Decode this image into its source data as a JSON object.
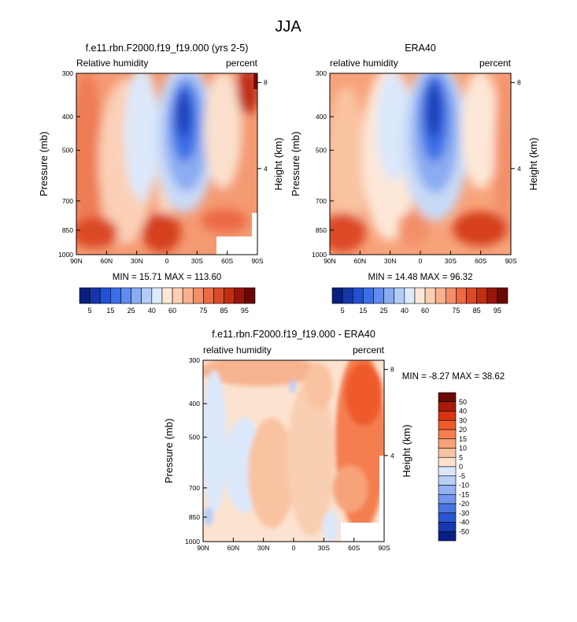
{
  "page": {
    "title": "JJA"
  },
  "chart_data": [
    {
      "type": "heatmap",
      "title": "f.e11.rbn.F2000.f19_f19.000 (yrs 2-5)",
      "subtitle_left": "Relative humidity",
      "subtitle_right": "percent",
      "ylabel": "Pressure (mb)",
      "ylabel_right": "Height (km)",
      "x_ticks": [
        "90N",
        "60N",
        "30N",
        "0",
        "30S",
        "60S",
        "90S"
      ],
      "y_ticks": [
        "300",
        "400",
        "500",
        "700",
        "850",
        "1000"
      ],
      "y_right_ticks": [
        "8",
        "4"
      ],
      "stats": "MIN = 15.71  MAX = 113.60",
      "min": 15.71,
      "max": 113.6,
      "levels": [
        5,
        10,
        15,
        20,
        25,
        30,
        40,
        50,
        60,
        65,
        70,
        75,
        80,
        85,
        90,
        95
      ],
      "labelbar_labels": [
        "5",
        "15",
        "25",
        "40",
        "60",
        "75",
        "85",
        "95"
      ]
    },
    {
      "type": "heatmap",
      "title": "ERA40",
      "subtitle_left": "relative humidity",
      "subtitle_right": "percent",
      "ylabel": "Pressure (mb)",
      "ylabel_right": "Height (km)",
      "x_ticks": [
        "90N",
        "60N",
        "30N",
        "0",
        "30S",
        "60S",
        "90S"
      ],
      "y_ticks": [
        "300",
        "400",
        "500",
        "700",
        "850",
        "1000"
      ],
      "y_right_ticks": [
        "8",
        "4"
      ],
      "stats": "MIN = 14.48  MAX = 96.32",
      "min": 14.48,
      "max": 96.32,
      "levels": [
        5,
        10,
        15,
        20,
        25,
        30,
        40,
        50,
        60,
        65,
        70,
        75,
        80,
        85,
        90,
        95
      ],
      "labelbar_labels": [
        "5",
        "15",
        "25",
        "40",
        "60",
        "75",
        "85",
        "95"
      ]
    },
    {
      "type": "heatmap",
      "title": "f.e11.rbn.F2000.f19_f19.000 - ERA40",
      "subtitle_left": "relative humidity",
      "subtitle_right": "percent",
      "ylabel": "Pressure (mb)",
      "ylabel_right": "Height (km)",
      "x_ticks": [
        "90N",
        "60N",
        "30N",
        "0",
        "30S",
        "60S",
        "90S"
      ],
      "y_ticks": [
        "300",
        "400",
        "500",
        "700",
        "850",
        "1000"
      ],
      "y_right_ticks": [
        "8",
        "4"
      ],
      "stats": "MIN = -8.27  MAX = 38.62",
      "min": -8.27,
      "max": 38.62,
      "levels": [
        50,
        40,
        30,
        20,
        15,
        10,
        5,
        0,
        -5,
        -10,
        -15,
        -20,
        -30,
        -40,
        -50
      ],
      "labelbar_labels": [
        "50",
        "40",
        "30",
        "20",
        "15",
        "10",
        "5",
        "0",
        "-5",
        "-10",
        "-15",
        "-20",
        "-30",
        "-40",
        "-50"
      ]
    }
  ],
  "colors": {
    "scale": [
      "#0a1f7d",
      "#1536a8",
      "#2150d0",
      "#3b6ee6",
      "#5f8cf0",
      "#8aacf2",
      "#b4ccf7",
      "#dceafb",
      "#fde8d8",
      "#fbcfb4",
      "#f8b08e",
      "#f38f69",
      "#ec6a44",
      "#dc4a25",
      "#c02f12",
      "#96160a",
      "#6a0804"
    ],
    "diff_scale": [
      "#6a0804",
      "#a81b08",
      "#d63412",
      "#ef5a2c",
      "#f47e50",
      "#f7a37a",
      "#f9c3a2",
      "#fce3d0",
      "#dbe8fb",
      "#b8cef6",
      "#94b2f1",
      "#7095eb",
      "#4a74e2",
      "#2a55d2",
      "#1838b0",
      "#0a1f85"
    ]
  }
}
